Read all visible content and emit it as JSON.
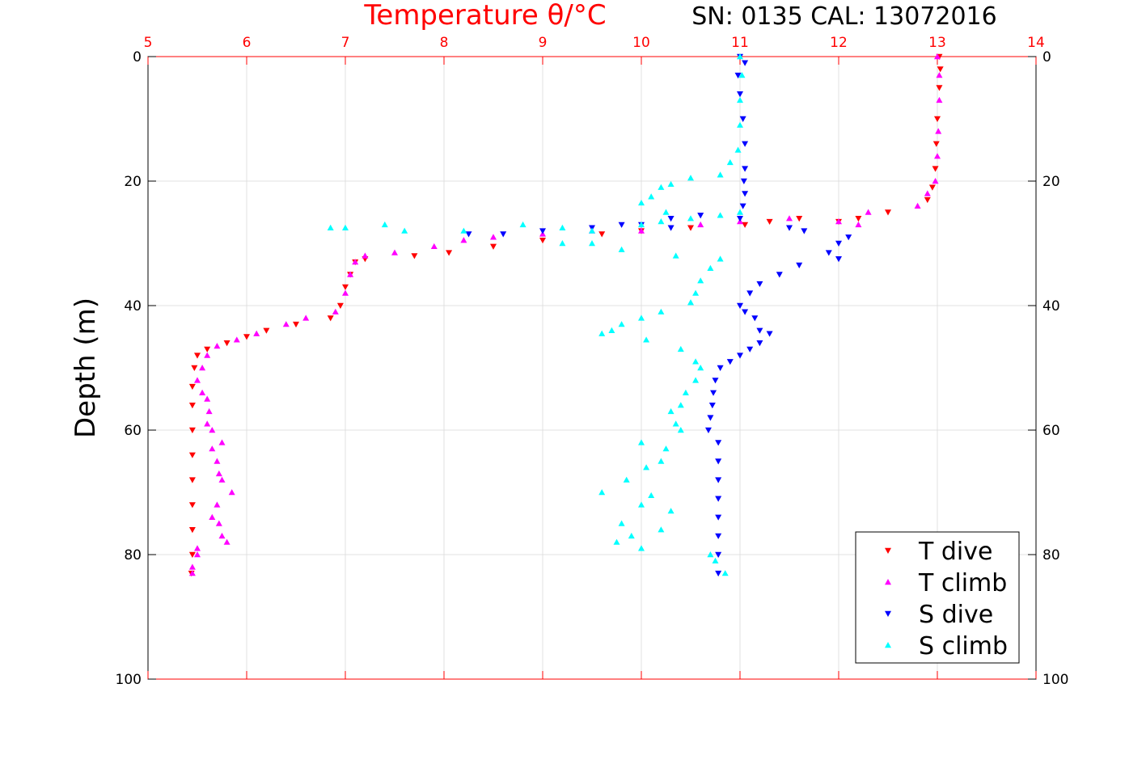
{
  "chart_data": {
    "type": "scatter",
    "title": "Temperature θ/°C",
    "subtitle": "SN: 0135  CAL: 13072016",
    "xlabel": "Temperature θ/°C",
    "ylabel": "Depth (m)",
    "xlim": [
      5,
      14
    ],
    "ylim": [
      0,
      100
    ],
    "y_reversed": true,
    "grid": true,
    "xticks": [
      5,
      6,
      7,
      8,
      9,
      10,
      11,
      12,
      13,
      14
    ],
    "yticks": [
      0,
      20,
      40,
      60,
      80,
      100
    ],
    "legend_position": "bottom-right",
    "series": [
      {
        "name": "T dive",
        "color": "#ff0000",
        "marker": "triangle-down",
        "points": [
          [
            13.02,
            0
          ],
          [
            13.03,
            2
          ],
          [
            13.02,
            5
          ],
          [
            13.0,
            10
          ],
          [
            12.99,
            14
          ],
          [
            12.98,
            18
          ],
          [
            12.95,
            21
          ],
          [
            12.9,
            23
          ],
          [
            12.5,
            25
          ],
          [
            12.2,
            26
          ],
          [
            12.0,
            26.5
          ],
          [
            11.6,
            26
          ],
          [
            11.3,
            26.5
          ],
          [
            11.05,
            27
          ],
          [
            10.5,
            27.5
          ],
          [
            10.0,
            28
          ],
          [
            9.6,
            28.5
          ],
          [
            9.0,
            29.5
          ],
          [
            8.5,
            30.5
          ],
          [
            8.05,
            31.5
          ],
          [
            7.7,
            32
          ],
          [
            7.2,
            32.5
          ],
          [
            7.1,
            33
          ],
          [
            7.05,
            35
          ],
          [
            7.0,
            37
          ],
          [
            6.95,
            40
          ],
          [
            6.85,
            42
          ],
          [
            6.5,
            43
          ],
          [
            6.2,
            44
          ],
          [
            6.0,
            45
          ],
          [
            5.8,
            46
          ],
          [
            5.6,
            47
          ],
          [
            5.5,
            48
          ],
          [
            5.47,
            50
          ],
          [
            5.45,
            53
          ],
          [
            5.45,
            56
          ],
          [
            5.45,
            60
          ],
          [
            5.45,
            64
          ],
          [
            5.45,
            68
          ],
          [
            5.45,
            72
          ],
          [
            5.45,
            76
          ],
          [
            5.45,
            80
          ],
          [
            5.44,
            83
          ]
        ]
      },
      {
        "name": "T climb",
        "color": "#ff00ff",
        "marker": "triangle-up",
        "points": [
          [
            13.0,
            0
          ],
          [
            13.02,
            3
          ],
          [
            13.02,
            7
          ],
          [
            13.01,
            12
          ],
          [
            13.0,
            16
          ],
          [
            12.98,
            20
          ],
          [
            12.9,
            22
          ],
          [
            12.8,
            24
          ],
          [
            12.3,
            25
          ],
          [
            12.2,
            27
          ],
          [
            12.0,
            26.5
          ],
          [
            11.5,
            26
          ],
          [
            11.0,
            26.5
          ],
          [
            10.6,
            27
          ],
          [
            10.0,
            28
          ],
          [
            9.5,
            28
          ],
          [
            9.0,
            28.5
          ],
          [
            8.5,
            29
          ],
          [
            8.2,
            29.5
          ],
          [
            7.9,
            30.5
          ],
          [
            7.5,
            31.5
          ],
          [
            7.2,
            32
          ],
          [
            7.1,
            33
          ],
          [
            7.05,
            35
          ],
          [
            7.0,
            38
          ],
          [
            6.9,
            41
          ],
          [
            6.6,
            42
          ],
          [
            6.4,
            43
          ],
          [
            6.1,
            44.5
          ],
          [
            5.9,
            45.5
          ],
          [
            5.7,
            46.5
          ],
          [
            5.6,
            48
          ],
          [
            5.55,
            50
          ],
          [
            5.5,
            52
          ],
          [
            5.55,
            54
          ],
          [
            5.6,
            55
          ],
          [
            5.62,
            57
          ],
          [
            5.6,
            59
          ],
          [
            5.65,
            60
          ],
          [
            5.75,
            62
          ],
          [
            5.65,
            63
          ],
          [
            5.7,
            65
          ],
          [
            5.72,
            67
          ],
          [
            5.75,
            68
          ],
          [
            5.85,
            70
          ],
          [
            5.7,
            72
          ],
          [
            5.65,
            74
          ],
          [
            5.72,
            75
          ],
          [
            5.75,
            77
          ],
          [
            5.8,
            78
          ],
          [
            5.5,
            79
          ],
          [
            5.5,
            80
          ],
          [
            5.45,
            82
          ],
          [
            5.45,
            83
          ]
        ]
      },
      {
        "name": "S dive",
        "color": "#0000ff",
        "marker": "triangle-down",
        "points": [
          [
            11.0,
            0
          ],
          [
            11.05,
            1
          ],
          [
            10.98,
            3
          ],
          [
            11.0,
            6
          ],
          [
            11.03,
            10
          ],
          [
            11.05,
            14
          ],
          [
            11.05,
            18
          ],
          [
            11.04,
            20
          ],
          [
            11.05,
            22
          ],
          [
            11.03,
            24
          ],
          [
            11.0,
            26
          ],
          [
            10.6,
            25.5
          ],
          [
            10.3,
            26
          ],
          [
            10.0,
            27
          ],
          [
            9.8,
            27
          ],
          [
            9.5,
            27.5
          ],
          [
            9.0,
            28
          ],
          [
            8.6,
            28.5
          ],
          [
            8.25,
            28.5
          ],
          [
            10.3,
            27.5
          ],
          [
            11.5,
            27.5
          ],
          [
            11.65,
            28
          ],
          [
            12.1,
            29
          ],
          [
            12.0,
            30
          ],
          [
            11.9,
            31.5
          ],
          [
            12.0,
            32.5
          ],
          [
            11.6,
            33.5
          ],
          [
            11.4,
            35
          ],
          [
            11.2,
            36.5
          ],
          [
            11.1,
            38
          ],
          [
            11.0,
            40
          ],
          [
            11.05,
            41
          ],
          [
            11.15,
            42
          ],
          [
            11.2,
            44
          ],
          [
            11.3,
            44.5
          ],
          [
            11.2,
            46
          ],
          [
            11.1,
            47
          ],
          [
            11.0,
            48
          ],
          [
            10.9,
            49
          ],
          [
            10.8,
            50
          ],
          [
            10.75,
            52
          ],
          [
            10.73,
            54
          ],
          [
            10.72,
            56
          ],
          [
            10.7,
            58
          ],
          [
            10.68,
            60
          ],
          [
            10.78,
            62
          ],
          [
            10.78,
            65
          ],
          [
            10.78,
            68
          ],
          [
            10.78,
            71
          ],
          [
            10.78,
            74
          ],
          [
            10.78,
            77
          ],
          [
            10.78,
            80
          ],
          [
            10.78,
            83
          ]
        ]
      },
      {
        "name": "S climb",
        "color": "#00ffff",
        "marker": "triangle-up",
        "points": [
          [
            11.0,
            0
          ],
          [
            11.02,
            3
          ],
          [
            11.0,
            7
          ],
          [
            11.0,
            11
          ],
          [
            10.98,
            15
          ],
          [
            10.9,
            17
          ],
          [
            10.8,
            19
          ],
          [
            10.5,
            19.5
          ],
          [
            10.3,
            20.5
          ],
          [
            10.2,
            21
          ],
          [
            10.1,
            22.5
          ],
          [
            10.0,
            23.5
          ],
          [
            10.25,
            25
          ],
          [
            10.5,
            26
          ],
          [
            11.0,
            25
          ],
          [
            10.8,
            25.5
          ],
          [
            10.2,
            26.5
          ],
          [
            10.0,
            27
          ],
          [
            9.5,
            28
          ],
          [
            9.2,
            27.5
          ],
          [
            8.8,
            27
          ],
          [
            8.2,
            28
          ],
          [
            7.6,
            28
          ],
          [
            7.4,
            27
          ],
          [
            7.0,
            27.5
          ],
          [
            6.85,
            27.5
          ],
          [
            9.2,
            30
          ],
          [
            9.5,
            30
          ],
          [
            9.8,
            31
          ],
          [
            10.35,
            32
          ],
          [
            10.8,
            32.5
          ],
          [
            10.7,
            34
          ],
          [
            10.6,
            36
          ],
          [
            10.55,
            38
          ],
          [
            10.5,
            39.5
          ],
          [
            10.2,
            41
          ],
          [
            10.0,
            42
          ],
          [
            9.8,
            43
          ],
          [
            9.6,
            44.5
          ],
          [
            9.7,
            44
          ],
          [
            10.05,
            45.5
          ],
          [
            10.4,
            47
          ],
          [
            10.55,
            49
          ],
          [
            10.6,
            50
          ],
          [
            10.55,
            52
          ],
          [
            10.45,
            54
          ],
          [
            10.4,
            56
          ],
          [
            10.3,
            57
          ],
          [
            10.35,
            59
          ],
          [
            10.4,
            60
          ],
          [
            10.0,
            62
          ],
          [
            10.25,
            63
          ],
          [
            10.2,
            65
          ],
          [
            10.05,
            66
          ],
          [
            9.85,
            68
          ],
          [
            9.6,
            70
          ],
          [
            10.1,
            70.5
          ],
          [
            10.0,
            72
          ],
          [
            10.3,
            73
          ],
          [
            9.8,
            75
          ],
          [
            10.2,
            76
          ],
          [
            9.9,
            77
          ],
          [
            9.75,
            78
          ],
          [
            10.0,
            79
          ],
          [
            10.7,
            80
          ],
          [
            10.75,
            81
          ],
          [
            10.85,
            83
          ]
        ]
      }
    ]
  }
}
